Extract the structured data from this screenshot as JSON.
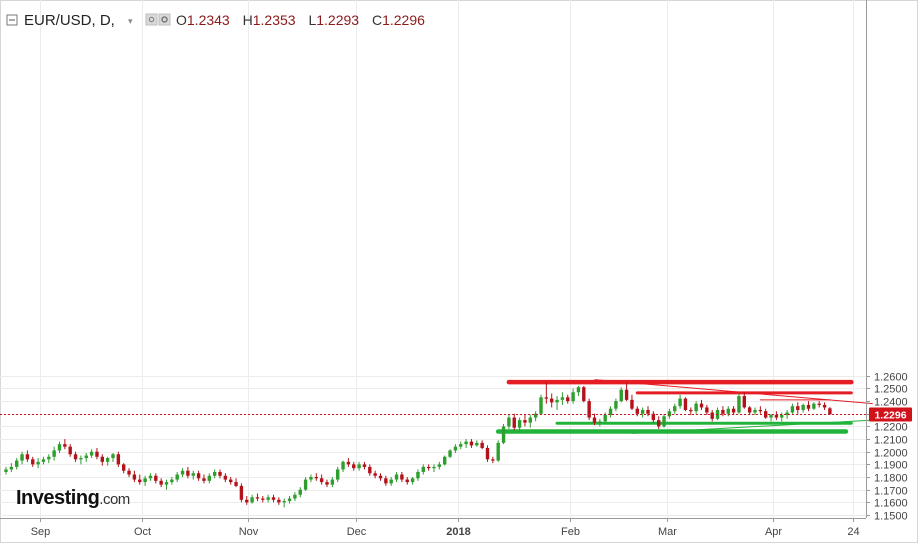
{
  "header": {
    "symbol": "EUR/USD, D,",
    "open_label": "O",
    "open": "1.2343",
    "high_label": "H",
    "high": "1.2353",
    "low_label": "L",
    "low": "1.2293",
    "close_label": "C",
    "close": "1.2296"
  },
  "watermark": {
    "brand": "Investing",
    "suffix": ".com"
  },
  "colors": {
    "up": "#2e9e2e",
    "down": "#b4121b",
    "accent_red": "#e51d24",
    "accent_green": "#22b43a",
    "price_tag": "#d0121b"
  },
  "chart_data": {
    "type": "candlestick",
    "ylim": [
      1.15,
      1.265
    ],
    "yticks": [
      "1.2600",
      "1.2500",
      "1.2400",
      "1.2300",
      "1.2200",
      "1.2100",
      "1.2000",
      "1.1900",
      "1.1800",
      "1.1700",
      "1.1600",
      "1.1500"
    ],
    "xticks": [
      "Sep",
      "Oct",
      "Nov",
      "Dec",
      "2018",
      "Feb",
      "Mar",
      "Apr",
      "24"
    ],
    "last_price": "1.2296",
    "candles": [
      [
        1.184,
        1.188,
        1.182,
        1.186
      ],
      [
        1.186,
        1.191,
        1.184,
        1.188
      ],
      [
        1.188,
        1.195,
        1.186,
        1.193
      ],
      [
        1.193,
        1.2,
        1.19,
        1.198
      ],
      [
        1.198,
        1.201,
        1.192,
        1.194
      ],
      [
        1.194,
        1.196,
        1.188,
        1.19
      ],
      [
        1.19,
        1.195,
        1.187,
        1.192
      ],
      [
        1.192,
        1.196,
        1.19,
        1.194
      ],
      [
        1.194,
        1.198,
        1.191,
        1.196
      ],
      [
        1.196,
        1.204,
        1.193,
        1.201
      ],
      [
        1.201,
        1.208,
        1.199,
        1.206
      ],
      [
        1.206,
        1.21,
        1.202,
        1.204
      ],
      [
        1.204,
        1.206,
        1.196,
        1.198
      ],
      [
        1.198,
        1.2,
        1.192,
        1.194
      ],
      [
        1.194,
        1.197,
        1.19,
        1.195
      ],
      [
        1.195,
        1.199,
        1.192,
        1.197
      ],
      [
        1.197,
        1.202,
        1.195,
        1.2
      ],
      [
        1.2,
        1.203,
        1.194,
        1.196
      ],
      [
        1.196,
        1.198,
        1.189,
        1.192
      ],
      [
        1.192,
        1.196,
        1.189,
        1.195
      ],
      [
        1.195,
        1.199,
        1.192,
        1.198
      ],
      [
        1.198,
        1.2,
        1.188,
        1.19
      ],
      [
        1.19,
        1.191,
        1.183,
        1.185
      ],
      [
        1.185,
        1.187,
        1.18,
        1.182
      ],
      [
        1.182,
        1.185,
        1.176,
        1.178
      ],
      [
        1.178,
        1.182,
        1.174,
        1.176
      ],
      [
        1.176,
        1.181,
        1.173,
        1.179
      ],
      [
        1.179,
        1.183,
        1.177,
        1.181
      ],
      [
        1.181,
        1.183,
        1.175,
        1.177
      ],
      [
        1.177,
        1.179,
        1.172,
        1.174
      ],
      [
        1.174,
        1.178,
        1.17,
        1.176
      ],
      [
        1.176,
        1.18,
        1.174,
        1.178
      ],
      [
        1.178,
        1.184,
        1.176,
        1.182
      ],
      [
        1.182,
        1.187,
        1.18,
        1.185
      ],
      [
        1.185,
        1.188,
        1.179,
        1.181
      ],
      [
        1.181,
        1.185,
        1.178,
        1.183
      ],
      [
        1.183,
        1.185,
        1.177,
        1.179
      ],
      [
        1.179,
        1.182,
        1.175,
        1.177
      ],
      [
        1.177,
        1.183,
        1.175,
        1.181
      ],
      [
        1.181,
        1.186,
        1.179,
        1.184
      ],
      [
        1.184,
        1.186,
        1.179,
        1.181
      ],
      [
        1.181,
        1.183,
        1.176,
        1.178
      ],
      [
        1.178,
        1.18,
        1.174,
        1.176
      ],
      [
        1.176,
        1.179,
        1.172,
        1.173
      ],
      [
        1.173,
        1.175,
        1.16,
        1.162
      ],
      [
        1.162,
        1.165,
        1.158,
        1.16
      ],
      [
        1.16,
        1.166,
        1.159,
        1.164
      ],
      [
        1.164,
        1.167,
        1.161,
        1.163
      ],
      [
        1.163,
        1.165,
        1.16,
        1.162
      ],
      [
        1.162,
        1.166,
        1.16,
        1.164
      ],
      [
        1.164,
        1.166,
        1.16,
        1.162
      ],
      [
        1.162,
        1.164,
        1.158,
        1.16
      ],
      [
        1.16,
        1.163,
        1.156,
        1.161
      ],
      [
        1.161,
        1.165,
        1.159,
        1.163
      ],
      [
        1.163,
        1.168,
        1.161,
        1.166
      ],
      [
        1.166,
        1.172,
        1.164,
        1.17
      ],
      [
        1.17,
        1.18,
        1.169,
        1.178
      ],
      [
        1.178,
        1.182,
        1.176,
        1.18
      ],
      [
        1.18,
        1.183,
        1.177,
        1.179
      ],
      [
        1.179,
        1.182,
        1.174,
        1.176
      ],
      [
        1.176,
        1.178,
        1.172,
        1.174
      ],
      [
        1.174,
        1.18,
        1.172,
        1.178
      ],
      [
        1.178,
        1.188,
        1.176,
        1.186
      ],
      [
        1.186,
        1.193,
        1.184,
        1.192
      ],
      [
        1.192,
        1.195,
        1.188,
        1.19
      ],
      [
        1.19,
        1.192,
        1.185,
        1.187
      ],
      [
        1.187,
        1.192,
        1.185,
        1.19
      ],
      [
        1.19,
        1.192,
        1.186,
        1.188
      ],
      [
        1.188,
        1.19,
        1.181,
        1.183
      ],
      [
        1.183,
        1.185,
        1.179,
        1.181
      ],
      [
        1.181,
        1.183,
        1.177,
        1.179
      ],
      [
        1.179,
        1.181,
        1.173,
        1.175
      ],
      [
        1.175,
        1.18,
        1.173,
        1.178
      ],
      [
        1.178,
        1.184,
        1.176,
        1.182
      ],
      [
        1.182,
        1.184,
        1.176,
        1.178
      ],
      [
        1.178,
        1.18,
        1.174,
        1.176
      ],
      [
        1.176,
        1.18,
        1.174,
        1.179
      ],
      [
        1.179,
        1.186,
        1.177,
        1.184
      ],
      [
        1.184,
        1.19,
        1.182,
        1.188
      ],
      [
        1.188,
        1.19,
        1.185,
        1.187
      ],
      [
        1.187,
        1.19,
        1.184,
        1.188
      ],
      [
        1.188,
        1.192,
        1.186,
        1.19
      ],
      [
        1.19,
        1.197,
        1.189,
        1.196
      ],
      [
        1.196,
        1.202,
        1.195,
        1.201
      ],
      [
        1.201,
        1.206,
        1.199,
        1.204
      ],
      [
        1.204,
        1.208,
        1.202,
        1.206
      ],
      [
        1.206,
        1.21,
        1.203,
        1.208
      ],
      [
        1.208,
        1.21,
        1.203,
        1.205
      ],
      [
        1.205,
        1.209,
        1.204,
        1.207
      ],
      [
        1.207,
        1.209,
        1.202,
        1.203
      ],
      [
        1.203,
        1.205,
        1.192,
        1.194
      ],
      [
        1.194,
        1.196,
        1.191,
        1.193
      ],
      [
        1.193,
        1.209,
        1.192,
        1.207
      ],
      [
        1.207,
        1.222,
        1.206,
        1.22
      ],
      [
        1.22,
        1.229,
        1.218,
        1.227
      ],
      [
        1.227,
        1.23,
        1.217,
        1.219
      ],
      [
        1.219,
        1.227,
        1.215,
        1.225
      ],
      [
        1.225,
        1.229,
        1.22,
        1.223
      ],
      [
        1.223,
        1.229,
        1.219,
        1.227
      ],
      [
        1.227,
        1.232,
        1.224,
        1.23
      ],
      [
        1.23,
        1.245,
        1.229,
        1.243
      ],
      [
        1.243,
        1.255,
        1.238,
        1.242
      ],
      [
        1.242,
        1.246,
        1.235,
        1.239
      ],
      [
        1.239,
        1.244,
        1.233,
        1.241
      ],
      [
        1.241,
        1.247,
        1.237,
        1.243
      ],
      [
        1.243,
        1.245,
        1.238,
        1.24
      ],
      [
        1.24,
        1.25,
        1.238,
        1.247
      ],
      [
        1.247,
        1.252,
        1.244,
        1.251
      ],
      [
        1.251,
        1.252,
        1.239,
        1.24
      ],
      [
        1.24,
        1.242,
        1.225,
        1.227
      ],
      [
        1.227,
        1.23,
        1.221,
        1.223
      ],
      [
        1.223,
        1.226,
        1.22,
        1.224
      ],
      [
        1.224,
        1.231,
        1.222,
        1.229
      ],
      [
        1.229,
        1.236,
        1.227,
        1.234
      ],
      [
        1.234,
        1.242,
        1.232,
        1.24
      ],
      [
        1.24,
        1.251,
        1.239,
        1.249
      ],
      [
        1.249,
        1.255,
        1.24,
        1.241
      ],
      [
        1.241,
        1.245,
        1.233,
        1.234
      ],
      [
        1.234,
        1.236,
        1.228,
        1.23
      ],
      [
        1.23,
        1.235,
        1.227,
        1.233
      ],
      [
        1.233,
        1.236,
        1.228,
        1.23
      ],
      [
        1.23,
        1.232,
        1.223,
        1.225
      ],
      [
        1.225,
        1.228,
        1.218,
        1.22
      ],
      [
        1.22,
        1.23,
        1.219,
        1.228
      ],
      [
        1.228,
        1.234,
        1.226,
        1.232
      ],
      [
        1.232,
        1.238,
        1.23,
        1.236
      ],
      [
        1.236,
        1.245,
        1.234,
        1.242
      ],
      [
        1.242,
        1.243,
        1.232,
        1.233
      ],
      [
        1.233,
        1.235,
        1.229,
        1.232
      ],
      [
        1.232,
        1.24,
        1.23,
        1.238
      ],
      [
        1.238,
        1.241,
        1.233,
        1.235
      ],
      [
        1.235,
        1.237,
        1.229,
        1.231
      ],
      [
        1.231,
        1.233,
        1.224,
        1.226
      ],
      [
        1.226,
        1.235,
        1.225,
        1.233
      ],
      [
        1.233,
        1.236,
        1.228,
        1.23
      ],
      [
        1.23,
        1.236,
        1.228,
        1.234
      ],
      [
        1.234,
        1.236,
        1.229,
        1.231
      ],
      [
        1.231,
        1.246,
        1.23,
        1.244
      ],
      [
        1.244,
        1.247,
        1.234,
        1.235
      ],
      [
        1.235,
        1.236,
        1.229,
        1.231
      ],
      [
        1.231,
        1.235,
        1.229,
        1.233
      ],
      [
        1.233,
        1.236,
        1.23,
        1.232
      ],
      [
        1.232,
        1.234,
        1.226,
        1.227
      ],
      [
        1.227,
        1.23,
        1.224,
        1.229
      ],
      [
        1.229,
        1.232,
        1.225,
        1.227
      ],
      [
        1.227,
        1.231,
        1.224,
        1.229
      ],
      [
        1.229,
        1.233,
        1.226,
        1.231
      ],
      [
        1.231,
        1.238,
        1.23,
        1.236
      ],
      [
        1.236,
        1.239,
        1.23,
        1.233
      ],
      [
        1.233,
        1.238,
        1.231,
        1.237
      ],
      [
        1.237,
        1.24,
        1.232,
        1.234
      ],
      [
        1.234,
        1.239,
        1.233,
        1.238
      ],
      [
        1.238,
        1.24,
        1.235,
        1.237
      ],
      [
        1.237,
        1.239,
        1.233,
        1.235
      ],
      [
        1.2343,
        1.2353,
        1.2293,
        1.2296
      ]
    ],
    "annotations": [
      {
        "kind": "horizontal",
        "color": "#e51d24",
        "weight": "thick",
        "price": 1.255,
        "from": 94,
        "to": 158
      },
      {
        "kind": "horizontal",
        "color": "#e51d24",
        "weight": "medium",
        "price": 1.2465,
        "from": 118,
        "to": 158
      },
      {
        "kind": "horizontal",
        "color": "#e51d24",
        "weight": "thin",
        "price": 1.241,
        "from": 141,
        "to": 154
      },
      {
        "kind": "horizontal",
        "color": "#22b43a",
        "weight": "medium",
        "price": 1.2225,
        "from": 103,
        "to": 158
      },
      {
        "kind": "horizontal",
        "color": "#22b43a",
        "weight": "thick",
        "price": 1.216,
        "from": 92,
        "to": 157
      },
      {
        "kind": "trend",
        "color": "#e51d24",
        "from": [
          110,
          1.257
        ],
        "to": [
          162,
          1.238
        ]
      },
      {
        "kind": "trend",
        "color": "#22b43a",
        "from": [
          117,
          1.2145
        ],
        "to": [
          162,
          1.225
        ]
      }
    ]
  }
}
